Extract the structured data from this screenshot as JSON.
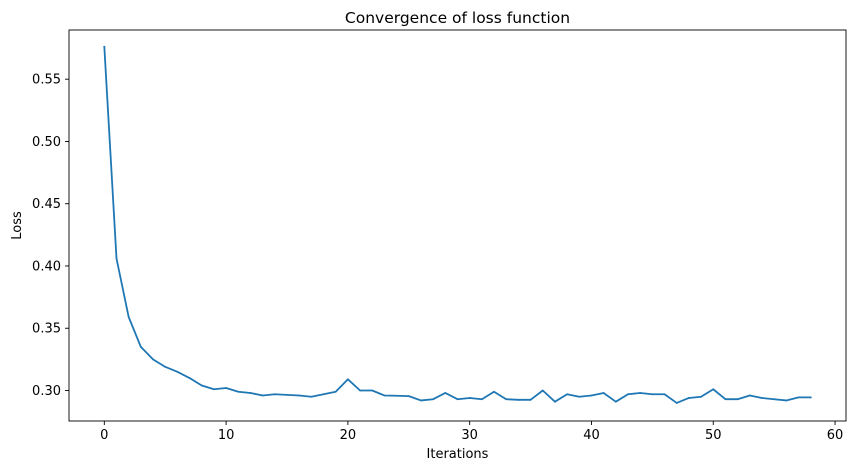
{
  "chart_data": {
    "type": "line",
    "title": "Convergence of loss function",
    "xlabel": "Iterations",
    "ylabel": "Loss",
    "xlim": [
      -2.9,
      60.9
    ],
    "ylim": [
      0.2755,
      0.5895
    ],
    "xticks": [
      0,
      10,
      20,
      30,
      40,
      50,
      60
    ],
    "yticks": [
      0.3,
      0.35,
      0.4,
      0.45,
      0.5,
      0.55
    ],
    "xtick_labels": [
      "0",
      "10",
      "20",
      "30",
      "40",
      "50",
      "60"
    ],
    "ytick_labels": [
      "0.30",
      "0.35",
      "0.40",
      "0.45",
      "0.50",
      "0.55"
    ],
    "grid": false,
    "series": [
      {
        "color": "#1f77b4",
        "x": [
          0,
          1,
          2,
          3,
          4,
          5,
          6,
          7,
          8,
          9,
          10,
          11,
          12,
          13,
          14,
          15,
          16,
          17,
          18,
          19,
          20,
          21,
          22,
          23,
          24,
          25,
          26,
          27,
          28,
          29,
          30,
          31,
          32,
          33,
          34,
          35,
          36,
          37,
          38,
          39,
          40,
          41,
          42,
          43,
          44,
          45,
          46,
          47,
          48,
          49,
          50,
          51,
          52,
          53,
          54,
          55,
          56,
          57,
          58
        ],
        "y": [
          0.576,
          0.406,
          0.359,
          0.335,
          0.325,
          0.319,
          0.315,
          0.31,
          0.304,
          0.301,
          0.302,
          0.299,
          0.298,
          0.296,
          0.297,
          0.2965,
          0.296,
          0.295,
          0.297,
          0.299,
          0.309,
          0.3,
          0.3,
          0.296,
          0.2958,
          0.2955,
          0.292,
          0.293,
          0.298,
          0.293,
          0.294,
          0.293,
          0.299,
          0.293,
          0.2925,
          0.2925,
          0.3,
          0.291,
          0.297,
          0.295,
          0.296,
          0.298,
          0.291,
          0.297,
          0.298,
          0.297,
          0.297,
          0.29,
          0.294,
          0.295,
          0.301,
          0.293,
          0.293,
          0.296,
          0.294,
          0.293,
          0.292,
          0.2945,
          0.2945
        ]
      }
    ]
  }
}
